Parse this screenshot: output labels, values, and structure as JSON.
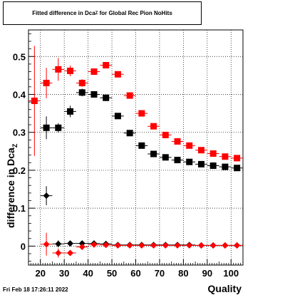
{
  "title": {
    "prefix": "Fitted difference in Dca",
    "subscript": "Z",
    "suffix": "for Global Rec Pion NoHits"
  },
  "axes": {
    "ylabel_prefix": "difference in Dca",
    "ylabel_subscript": "Z",
    "xlabel": "Quality"
  },
  "footer": "Fri Feb 18 17:26:11 2022",
  "chart_data": {
    "type": "scatter",
    "title": "Fitted difference in Dca_Z for Global Rec Pion NoHits",
    "xlabel": "Quality",
    "ylabel": "difference in Dca_Z",
    "xlim": [
      15,
      105
    ],
    "ylim": [
      -0.05,
      0.57
    ],
    "grid": true,
    "xticks": [
      20,
      30,
      40,
      50,
      60,
      70,
      80,
      90,
      100
    ],
    "yticks": [
      0,
      0.1,
      0.2,
      0.3,
      0.4,
      0.5
    ],
    "ytick_labels": [
      "0",
      "0.1",
      "0.2",
      "0.3",
      "0.4",
      "0.5"
    ],
    "x": [
      17.5,
      22.5,
      27.5,
      32.5,
      37.5,
      42.5,
      47.5,
      52.5,
      57.5,
      62.5,
      67.5,
      72.5,
      77.5,
      82.5,
      87.5,
      92.5,
      97.5,
      102.5
    ],
    "series": [
      {
        "marker": "square",
        "color": "#ff0000",
        "values": [
          0.383,
          0.43,
          0.466,
          0.462,
          0.43,
          0.46,
          0.477,
          0.453,
          0.397,
          0.35,
          0.316,
          0.293,
          0.276,
          0.265,
          0.253,
          0.244,
          0.236,
          0.232
        ],
        "errors": [
          0.145,
          0.04,
          0.03,
          0.014,
          0.01,
          0.006,
          0.005,
          0.004,
          0.003,
          0.003,
          0.003,
          0.002,
          0.002,
          0.002,
          0.002,
          0.002,
          0.002,
          0.002
        ]
      },
      {
        "marker": "square",
        "color": "#000000",
        "values": [
          null,
          0.312,
          0.312,
          0.355,
          0.405,
          0.4,
          0.391,
          0.343,
          0.298,
          0.265,
          0.243,
          0.234,
          0.227,
          0.222,
          0.216,
          0.212,
          0.209,
          0.206
        ],
        "errors": [
          null,
          0.03,
          0.012,
          0.015,
          0.01,
          0.007,
          0.005,
          0.004,
          0.003,
          0.003,
          0.002,
          0.002,
          0.002,
          0.002,
          0.002,
          0.002,
          0.002,
          0.002
        ]
      },
      {
        "marker": "diamond",
        "color": "#000000",
        "values": [
          null,
          0.133,
          0.006,
          0.007,
          0.007,
          0.007,
          0.006,
          0.003,
          0.003,
          0.003,
          0.003,
          0.003,
          0.003,
          0.003,
          0.002,
          0.002,
          0.002,
          0.002
        ],
        "errors": [
          null,
          0.025,
          0.009,
          0.006,
          0.004,
          0.003,
          0.002,
          0.002,
          0.001,
          0.001,
          0.001,
          0.001,
          0.001,
          0.001,
          0.001,
          0.001,
          0.001,
          0.001
        ]
      },
      {
        "marker": "diamond",
        "color": "#ff0000",
        "values": [
          null,
          0.005,
          -0.018,
          -0.018,
          -0.002,
          0.004,
          0.003,
          0.002,
          0.002,
          0.002,
          0.002,
          0.002,
          0.002,
          0.002,
          0.002,
          0.002,
          0.002,
          0.002
        ],
        "errors": [
          null,
          0.03,
          0.012,
          0.006,
          0.005,
          0.003,
          0.002,
          0.001,
          0.001,
          0.001,
          0.001,
          0.001,
          0.001,
          0.001,
          0.001,
          0.001,
          0.001,
          0.001
        ]
      }
    ]
  }
}
